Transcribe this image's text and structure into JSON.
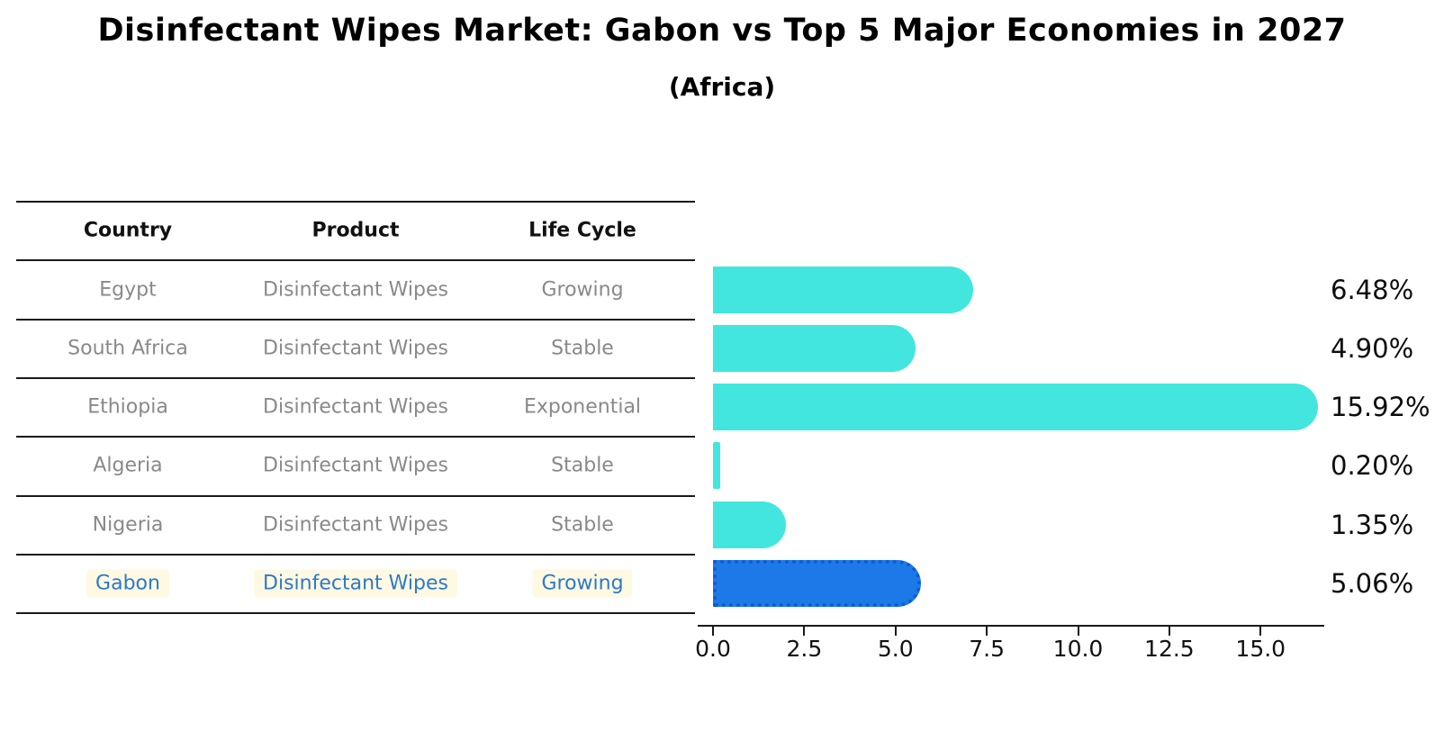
{
  "title": "Disinfectant Wipes Market: Gabon vs Top 5 Major Economies in 2027",
  "subtitle": "(Africa)",
  "table": {
    "headers": [
      "Country",
      "Product",
      "Life Cycle"
    ],
    "rows": [
      {
        "country": "Egypt",
        "product": "Disinfectant Wipes",
        "life_cycle": "Growing",
        "highlighted": false
      },
      {
        "country": "South Africa",
        "product": "Disinfectant Wipes",
        "life_cycle": "Stable",
        "highlighted": false
      },
      {
        "country": "Ethiopia",
        "product": "Disinfectant Wipes",
        "life_cycle": "Exponential",
        "highlighted": false
      },
      {
        "country": "Algeria",
        "product": "Disinfectant Wipes",
        "life_cycle": "Stable",
        "highlighted": false
      },
      {
        "country": "Nigeria",
        "product": "Disinfectant Wipes",
        "life_cycle": "Stable",
        "highlighted": false
      },
      {
        "country": "Gabon",
        "product": "Disinfectant Wipes",
        "life_cycle": "Growing",
        "highlighted": true
      }
    ]
  },
  "chart_data": {
    "type": "bar",
    "orientation": "horizontal",
    "title": "Disinfectant Wipes Market: Gabon vs Top 5 Major Economies in 2027 (Africa)",
    "categories": [
      "Egypt",
      "South Africa",
      "Ethiopia",
      "Algeria",
      "Nigeria",
      "Gabon"
    ],
    "values": [
      6.48,
      4.9,
      15.92,
      0.2,
      1.35,
      5.06
    ],
    "value_labels": [
      "6.48%",
      "4.90%",
      "15.92%",
      "0.20%",
      "1.35%",
      "5.06%"
    ],
    "x_tick_values": [
      0.0,
      2.5,
      5.0,
      7.5,
      10.0,
      12.5,
      15.0
    ],
    "x_tick_labels": [
      "0.0",
      "2.5",
      "5.0",
      "7.5",
      "10.0",
      "12.5",
      "15.0"
    ],
    "xlim": [
      0,
      16.7
    ],
    "grid": false,
    "legend": "none",
    "highlight_index": 5,
    "bar_color": "#43e6de",
    "highlight_bar_color": "#1e79e8",
    "highlight_bar_border_color": "#0c5cd6",
    "highlight_text_color": "#2e79c7",
    "label_color": "#0d0d0d"
  }
}
